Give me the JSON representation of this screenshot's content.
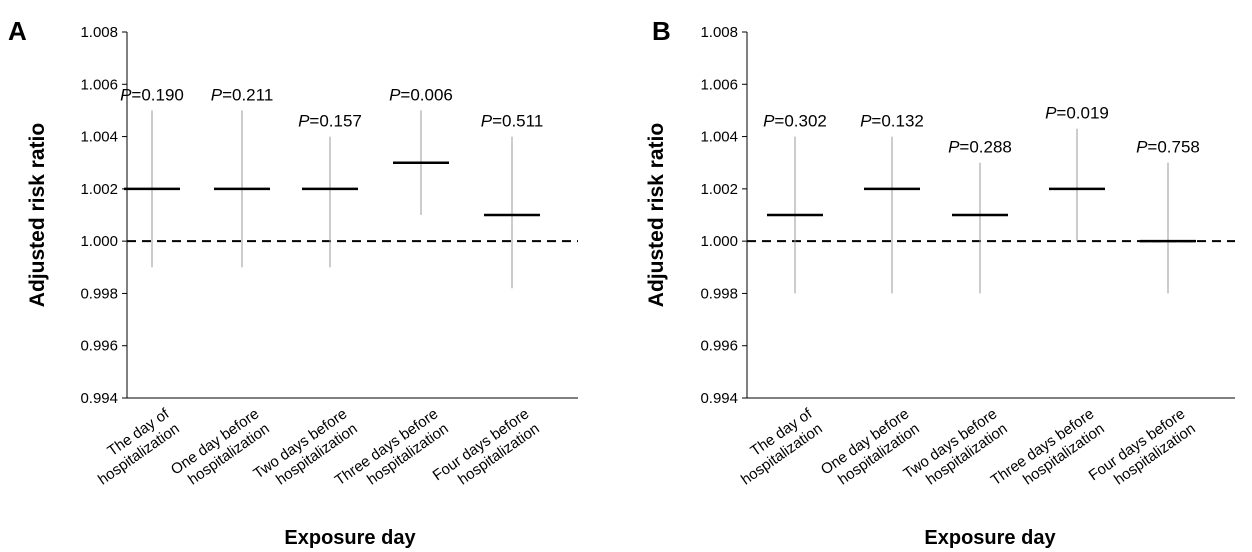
{
  "chart_data": [
    {
      "type": "errorbar",
      "panel_label": "A",
      "xlabel": "Exposure day",
      "ylabel": "Adjusted risk ratio",
      "ylim": [
        0.994,
        1.008
      ],
      "yticks": [
        "0.994",
        "0.996",
        "0.998",
        "1.000",
        "1.002",
        "1.004",
        "1.006",
        "1.008"
      ],
      "reference_line": 1.0,
      "categories": [
        [
          "The day of",
          "hospitalization"
        ],
        [
          "One day before",
          "hospitalization"
        ],
        [
          "Two days before",
          "hospitalization"
        ],
        [
          "Three days before",
          "hospitalization"
        ],
        [
          "Four days before",
          "hospitalization"
        ]
      ],
      "points": [
        {
          "estimate": 1.002,
          "lower": 0.999,
          "upper": 1.005,
          "p_prefix": "P",
          "p_value": "=0.190"
        },
        {
          "estimate": 1.002,
          "lower": 0.999,
          "upper": 1.005,
          "p_prefix": "P",
          "p_value": "=0.211"
        },
        {
          "estimate": 1.002,
          "lower": 0.999,
          "upper": 1.004,
          "p_prefix": "P",
          "p_value": "=0.157"
        },
        {
          "estimate": 1.003,
          "lower": 1.001,
          "upper": 1.005,
          "p_prefix": "P",
          "p_value": "=0.006"
        },
        {
          "estimate": 1.001,
          "lower": 0.9982,
          "upper": 1.004,
          "p_prefix": "P",
          "p_value": "=0.511"
        }
      ]
    },
    {
      "type": "errorbar",
      "panel_label": "B",
      "xlabel": "Exposure day",
      "ylabel": "Adjusted risk ratio",
      "ylim": [
        0.994,
        1.008
      ],
      "yticks": [
        "0.994",
        "0.996",
        "0.998",
        "1.000",
        "1.002",
        "1.004",
        "1.006",
        "1.008"
      ],
      "reference_line": 1.0,
      "categories": [
        [
          "The day of",
          "hospitalization"
        ],
        [
          "One day before",
          "hospitalization"
        ],
        [
          "Two days before",
          "hospitalization"
        ],
        [
          "Three days before",
          "hospitalization"
        ],
        [
          "Four days before",
          "hospitalization"
        ]
      ],
      "points": [
        {
          "estimate": 1.001,
          "lower": 0.998,
          "upper": 1.004,
          "p_prefix": "P",
          "p_value": "=0.302"
        },
        {
          "estimate": 1.002,
          "lower": 0.998,
          "upper": 1.004,
          "p_prefix": "P",
          "p_value": "=0.132"
        },
        {
          "estimate": 1.001,
          "lower": 0.998,
          "upper": 1.003,
          "p_prefix": "P",
          "p_value": "=0.288"
        },
        {
          "estimate": 1.002,
          "lower": 1.0,
          "upper": 1.0043,
          "p_prefix": "P",
          "p_value": "=0.019"
        },
        {
          "estimate": 1.0,
          "lower": 0.998,
          "upper": 1.003,
          "p_prefix": "P",
          "p_value": "=0.758"
        }
      ]
    }
  ]
}
